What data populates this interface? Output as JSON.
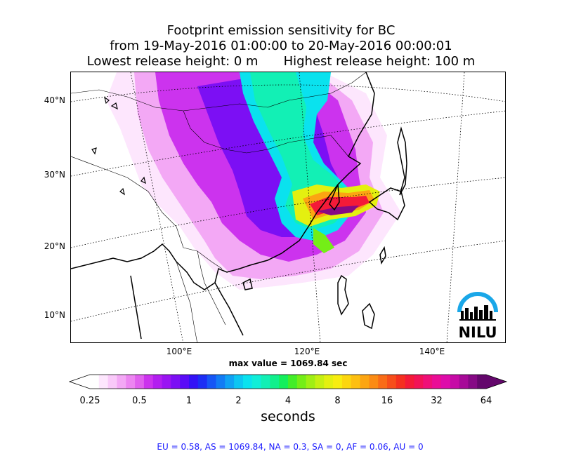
{
  "title": {
    "line1": "Footprint emission sensitivity for BC",
    "line2": "from 19-May-2016 01:00:00 to 20-May-2016 00:00:01",
    "lowest": "Lowest release height: 0 m",
    "highest": "Highest release height: 100 m"
  },
  "map": {
    "lat_labels": [
      "40°N",
      "30°N",
      "20°N",
      "10°N"
    ],
    "lon_labels": [
      "100°E",
      "120°E",
      "140°E"
    ],
    "logo_text": "NILU",
    "logo_color": "#1aa7e8"
  },
  "max_value": "max value = 1069.84 sec",
  "colorbar": {
    "ticks": [
      "0.25",
      "0.5",
      "1",
      "2",
      "4",
      "8",
      "16",
      "32",
      "64"
    ],
    "units": "seconds",
    "colors": [
      "#ffffff",
      "#fde6fd",
      "#f9c9f9",
      "#f3a8f5",
      "#ec85f1",
      "#e060ee",
      "#cc33ee",
      "#b31ef0",
      "#9a14f2",
      "#7c0ff4",
      "#5a0cf7",
      "#3312f6",
      "#1c2ef5",
      "#1656f6",
      "#127cf5",
      "#10a2f4",
      "#0dc6f2",
      "#0ae2ee",
      "#10eed8",
      "#12f0b5",
      "#10f08c",
      "#14ef5c",
      "#42ee29",
      "#74ee17",
      "#a0ef14",
      "#c6f012",
      "#e4f010",
      "#f8ed10",
      "#fcd60f",
      "#fdbf10",
      "#fca512",
      "#fb8b14",
      "#f96c17",
      "#f74e1a",
      "#f5301f",
      "#f41a38",
      "#f21257",
      "#ef0f78",
      "#ea0d96",
      "#de0caa",
      "#c60ba6",
      "#a70a98",
      "#860985",
      "#64076c"
    ]
  },
  "stats": "EU = 0.58,  AS = 1069.84,  NA = 0.3,  SA = 0,  AF = 0.06,  AU = 0"
}
